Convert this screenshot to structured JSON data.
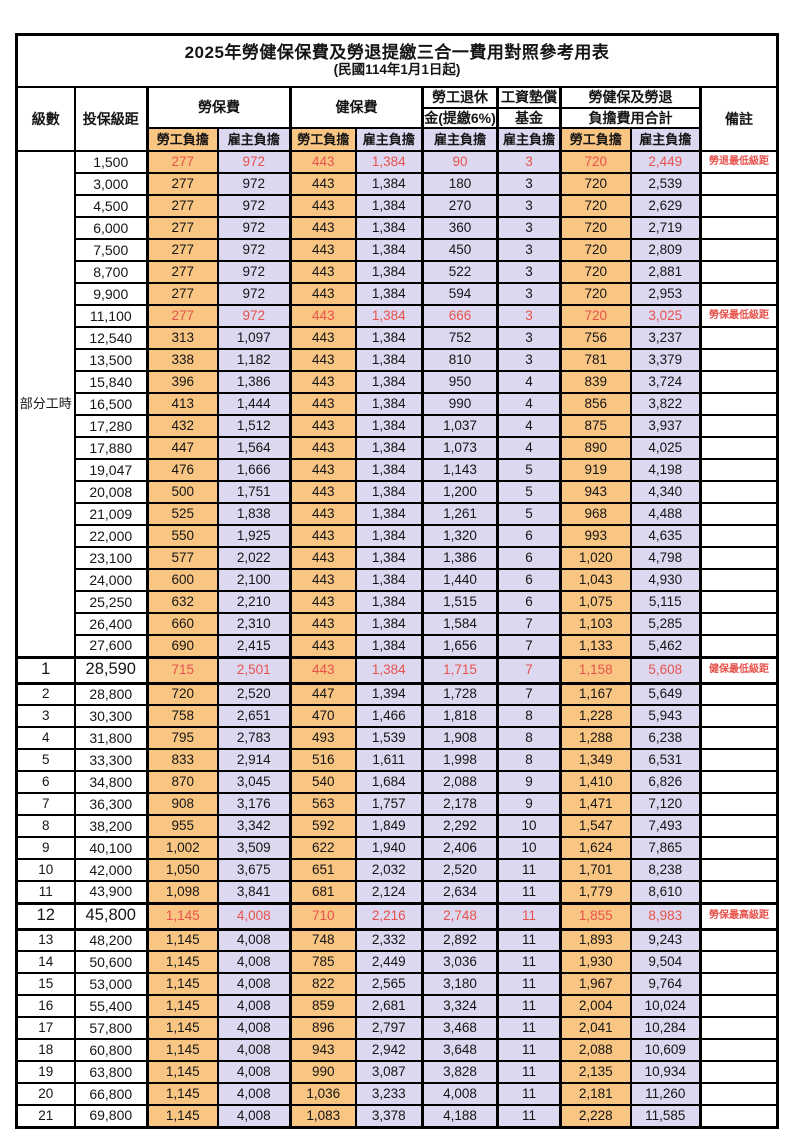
{
  "title": "2025年勞健保保費及勞退提繳三合一費用對照參考用表",
  "subtitle": "(民國114年1月1日起)",
  "colors": {
    "employee_col_bg": "#F9C583",
    "employer_col_bg": "#DBD8F0",
    "highlight_red": "#E8524C",
    "border": "#000000",
    "background": "#FFFFFF"
  },
  "header": {
    "level": "級數",
    "bracket": "投保級距",
    "labor_insurance": "勞保費",
    "health_insurance": "健保費",
    "pension_line1": "勞工退休",
    "pension_line2": "金(提繳6%)",
    "wage_fund_line1": "工資墊償",
    "wage_fund_line2": "基金",
    "total_line1": "勞健保及勞退",
    "total_line2": "負擔費用合計",
    "remark": "備註",
    "employee": "勞工負擔",
    "employer": "雇主負擔"
  },
  "part_time": {
    "label": "部分工時",
    "row_count": 23
  },
  "rows": [
    {
      "level": "",
      "bracket": "1,500",
      "v": [
        "277",
        "972",
        "443",
        "1,384",
        "90",
        "3",
        "720",
        "2,449"
      ],
      "red": true,
      "note": "勞退最低級距"
    },
    {
      "level": "",
      "bracket": "3,000",
      "v": [
        "277",
        "972",
        "443",
        "1,384",
        "180",
        "3",
        "720",
        "2,539"
      ],
      "note": ""
    },
    {
      "level": "",
      "bracket": "4,500",
      "v": [
        "277",
        "972",
        "443",
        "1,384",
        "270",
        "3",
        "720",
        "2,629"
      ],
      "note": ""
    },
    {
      "level": "",
      "bracket": "6,000",
      "v": [
        "277",
        "972",
        "443",
        "1,384",
        "360",
        "3",
        "720",
        "2,719"
      ],
      "note": ""
    },
    {
      "level": "",
      "bracket": "7,500",
      "v": [
        "277",
        "972",
        "443",
        "1,384",
        "450",
        "3",
        "720",
        "2,809"
      ],
      "note": ""
    },
    {
      "level": "",
      "bracket": "8,700",
      "v": [
        "277",
        "972",
        "443",
        "1,384",
        "522",
        "3",
        "720",
        "2,881"
      ],
      "note": ""
    },
    {
      "level": "",
      "bracket": "9,900",
      "v": [
        "277",
        "972",
        "443",
        "1,384",
        "594",
        "3",
        "720",
        "2,953"
      ],
      "note": ""
    },
    {
      "level": "",
      "bracket": "11,100",
      "v": [
        "277",
        "972",
        "443",
        "1,384",
        "666",
        "3",
        "720",
        "3,025"
      ],
      "red": true,
      "note": "勞保最低級距"
    },
    {
      "level": "",
      "bracket": "12,540",
      "v": [
        "313",
        "1,097",
        "443",
        "1,384",
        "752",
        "3",
        "756",
        "3,237"
      ],
      "note": ""
    },
    {
      "level": "",
      "bracket": "13,500",
      "v": [
        "338",
        "1,182",
        "443",
        "1,384",
        "810",
        "3",
        "781",
        "3,379"
      ],
      "note": ""
    },
    {
      "level": "",
      "bracket": "15,840",
      "v": [
        "396",
        "1,386",
        "443",
        "1,384",
        "950",
        "4",
        "839",
        "3,724"
      ],
      "note": ""
    },
    {
      "level": "",
      "bracket": "16,500",
      "v": [
        "413",
        "1,444",
        "443",
        "1,384",
        "990",
        "4",
        "856",
        "3,822"
      ],
      "note": ""
    },
    {
      "level": "",
      "bracket": "17,280",
      "v": [
        "432",
        "1,512",
        "443",
        "1,384",
        "1,037",
        "4",
        "875",
        "3,937"
      ],
      "note": ""
    },
    {
      "level": "",
      "bracket": "17,880",
      "v": [
        "447",
        "1,564",
        "443",
        "1,384",
        "1,073",
        "4",
        "890",
        "4,025"
      ],
      "note": ""
    },
    {
      "level": "",
      "bracket": "19,047",
      "v": [
        "476",
        "1,666",
        "443",
        "1,384",
        "1,143",
        "5",
        "919",
        "4,198"
      ],
      "note": ""
    },
    {
      "level": "",
      "bracket": "20,008",
      "v": [
        "500",
        "1,751",
        "443",
        "1,384",
        "1,200",
        "5",
        "943",
        "4,340"
      ],
      "note": ""
    },
    {
      "level": "",
      "bracket": "21,009",
      "v": [
        "525",
        "1,838",
        "443",
        "1,384",
        "1,261",
        "5",
        "968",
        "4,488"
      ],
      "note": ""
    },
    {
      "level": "",
      "bracket": "22,000",
      "v": [
        "550",
        "1,925",
        "443",
        "1,384",
        "1,320",
        "6",
        "993",
        "4,635"
      ],
      "note": ""
    },
    {
      "level": "",
      "bracket": "23,100",
      "v": [
        "577",
        "2,022",
        "443",
        "1,384",
        "1,386",
        "6",
        "1,020",
        "4,798"
      ],
      "note": ""
    },
    {
      "level": "",
      "bracket": "24,000",
      "v": [
        "600",
        "2,100",
        "443",
        "1,384",
        "1,440",
        "6",
        "1,043",
        "4,930"
      ],
      "note": ""
    },
    {
      "level": "",
      "bracket": "25,250",
      "v": [
        "632",
        "2,210",
        "443",
        "1,384",
        "1,515",
        "6",
        "1,075",
        "5,115"
      ],
      "note": ""
    },
    {
      "level": "",
      "bracket": "26,400",
      "v": [
        "660",
        "2,310",
        "443",
        "1,384",
        "1,584",
        "7",
        "1,103",
        "5,285"
      ],
      "note": ""
    },
    {
      "level": "",
      "bracket": "27,600",
      "v": [
        "690",
        "2,415",
        "443",
        "1,384",
        "1,656",
        "7",
        "1,133",
        "5,462"
      ],
      "note": ""
    },
    {
      "level": "1",
      "bracket": "28,590",
      "v": [
        "715",
        "2,501",
        "443",
        "1,384",
        "1,715",
        "7",
        "1,158",
        "5,608"
      ],
      "red": true,
      "emph": true,
      "note": "健保最低級距"
    },
    {
      "level": "2",
      "bracket": "28,800",
      "v": [
        "720",
        "2,520",
        "447",
        "1,394",
        "1,728",
        "7",
        "1,167",
        "5,649"
      ],
      "note": ""
    },
    {
      "level": "3",
      "bracket": "30,300",
      "v": [
        "758",
        "2,651",
        "470",
        "1,466",
        "1,818",
        "8",
        "1,228",
        "5,943"
      ],
      "note": ""
    },
    {
      "level": "4",
      "bracket": "31,800",
      "v": [
        "795",
        "2,783",
        "493",
        "1,539",
        "1,908",
        "8",
        "1,288",
        "6,238"
      ],
      "note": ""
    },
    {
      "level": "5",
      "bracket": "33,300",
      "v": [
        "833",
        "2,914",
        "516",
        "1,611",
        "1,998",
        "8",
        "1,349",
        "6,531"
      ],
      "note": ""
    },
    {
      "level": "6",
      "bracket": "34,800",
      "v": [
        "870",
        "3,045",
        "540",
        "1,684",
        "2,088",
        "9",
        "1,410",
        "6,826"
      ],
      "note": ""
    },
    {
      "level": "7",
      "bracket": "36,300",
      "v": [
        "908",
        "3,176",
        "563",
        "1,757",
        "2,178",
        "9",
        "1,471",
        "7,120"
      ],
      "note": ""
    },
    {
      "level": "8",
      "bracket": "38,200",
      "v": [
        "955",
        "3,342",
        "592",
        "1,849",
        "2,292",
        "10",
        "1,547",
        "7,493"
      ],
      "note": ""
    },
    {
      "level": "9",
      "bracket": "40,100",
      "v": [
        "1,002",
        "3,509",
        "622",
        "1,940",
        "2,406",
        "10",
        "1,624",
        "7,865"
      ],
      "note": ""
    },
    {
      "level": "10",
      "bracket": "42,000",
      "v": [
        "1,050",
        "3,675",
        "651",
        "2,032",
        "2,520",
        "11",
        "1,701",
        "8,238"
      ],
      "note": ""
    },
    {
      "level": "11",
      "bracket": "43,900",
      "v": [
        "1,098",
        "3,841",
        "681",
        "2,124",
        "2,634",
        "11",
        "1,779",
        "8,610"
      ],
      "note": ""
    },
    {
      "level": "12",
      "bracket": "45,800",
      "v": [
        "1,145",
        "4,008",
        "710",
        "2,216",
        "2,748",
        "11",
        "1,855",
        "8,983"
      ],
      "red": true,
      "emph": true,
      "note": "勞保最高級距"
    },
    {
      "level": "13",
      "bracket": "48,200",
      "v": [
        "1,145",
        "4,008",
        "748",
        "2,332",
        "2,892",
        "11",
        "1,893",
        "9,243"
      ],
      "note": ""
    },
    {
      "level": "14",
      "bracket": "50,600",
      "v": [
        "1,145",
        "4,008",
        "785",
        "2,449",
        "3,036",
        "11",
        "1,930",
        "9,504"
      ],
      "note": ""
    },
    {
      "level": "15",
      "bracket": "53,000",
      "v": [
        "1,145",
        "4,008",
        "822",
        "2,565",
        "3,180",
        "11",
        "1,967",
        "9,764"
      ],
      "note": ""
    },
    {
      "level": "16",
      "bracket": "55,400",
      "v": [
        "1,145",
        "4,008",
        "859",
        "2,681",
        "3,324",
        "11",
        "2,004",
        "10,024"
      ],
      "note": ""
    },
    {
      "level": "17",
      "bracket": "57,800",
      "v": [
        "1,145",
        "4,008",
        "896",
        "2,797",
        "3,468",
        "11",
        "2,041",
        "10,284"
      ],
      "note": ""
    },
    {
      "level": "18",
      "bracket": "60,800",
      "v": [
        "1,145",
        "4,008",
        "943",
        "2,942",
        "3,648",
        "11",
        "2,088",
        "10,609"
      ],
      "note": ""
    },
    {
      "level": "19",
      "bracket": "63,800",
      "v": [
        "1,145",
        "4,008",
        "990",
        "3,087",
        "3,828",
        "11",
        "2,135",
        "10,934"
      ],
      "note": ""
    },
    {
      "level": "20",
      "bracket": "66,800",
      "v": [
        "1,145",
        "4,008",
        "1,036",
        "3,233",
        "4,008",
        "11",
        "2,181",
        "11,260"
      ],
      "note": ""
    },
    {
      "level": "21",
      "bracket": "69,800",
      "v": [
        "1,145",
        "4,008",
        "1,083",
        "3,378",
        "4,188",
        "11",
        "2,228",
        "11,585"
      ],
      "note": ""
    }
  ]
}
